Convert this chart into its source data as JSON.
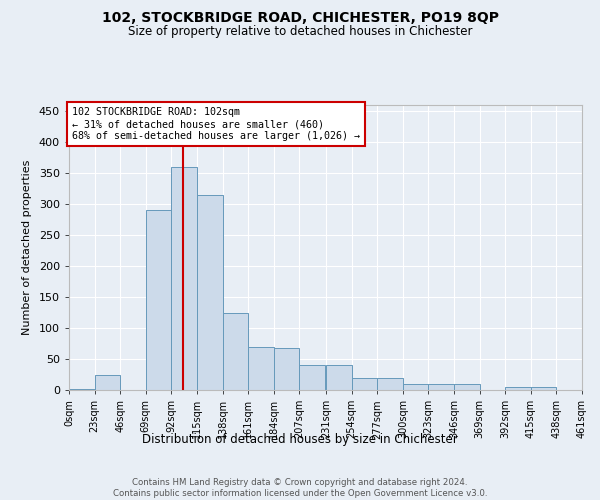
{
  "title": "102, STOCKBRIDGE ROAD, CHICHESTER, PO19 8QP",
  "subtitle": "Size of property relative to detached houses in Chichester",
  "xlabel": "Distribution of detached houses by size in Chichester",
  "ylabel": "Number of detached properties",
  "bar_color": "#ccdaea",
  "bar_edge_color": "#6699bb",
  "background_color": "#e8eef5",
  "grid_color": "#ffffff",
  "annotation_box_edge_color": "#cc0000",
  "property_line_color": "#cc0000",
  "property_value": 102,
  "annotation_line1": "102 STOCKBRIDGE ROAD: 102sqm",
  "annotation_line2": "← 31% of detached houses are smaller (460)",
  "annotation_line3": "68% of semi-detached houses are larger (1,026) →",
  "footer_text": "Contains HM Land Registry data © Crown copyright and database right 2024.\nContains public sector information licensed under the Open Government Licence v3.0.",
  "bin_edges": [
    0,
    23,
    46,
    69,
    92,
    115,
    138,
    161,
    184,
    207,
    231,
    254,
    277,
    300,
    323,
    346,
    369,
    392,
    415,
    438,
    461
  ],
  "bin_labels": [
    "0sqm",
    "23sqm",
    "46sqm",
    "69sqm",
    "92sqm",
    "115sqm",
    "138sqm",
    "161sqm",
    "184sqm",
    "207sqm",
    "231sqm",
    "254sqm",
    "277sqm",
    "300sqm",
    "323sqm",
    "346sqm",
    "369sqm",
    "392sqm",
    "415sqm",
    "438sqm",
    "461sqm"
  ],
  "counts": [
    2,
    25,
    0,
    290,
    360,
    315,
    125,
    70,
    68,
    40,
    40,
    20,
    20,
    10,
    10,
    10,
    0,
    5,
    5,
    0
  ],
  "ylim": [
    0,
    460
  ],
  "yticks": [
    0,
    50,
    100,
    150,
    200,
    250,
    300,
    350,
    400,
    450
  ]
}
